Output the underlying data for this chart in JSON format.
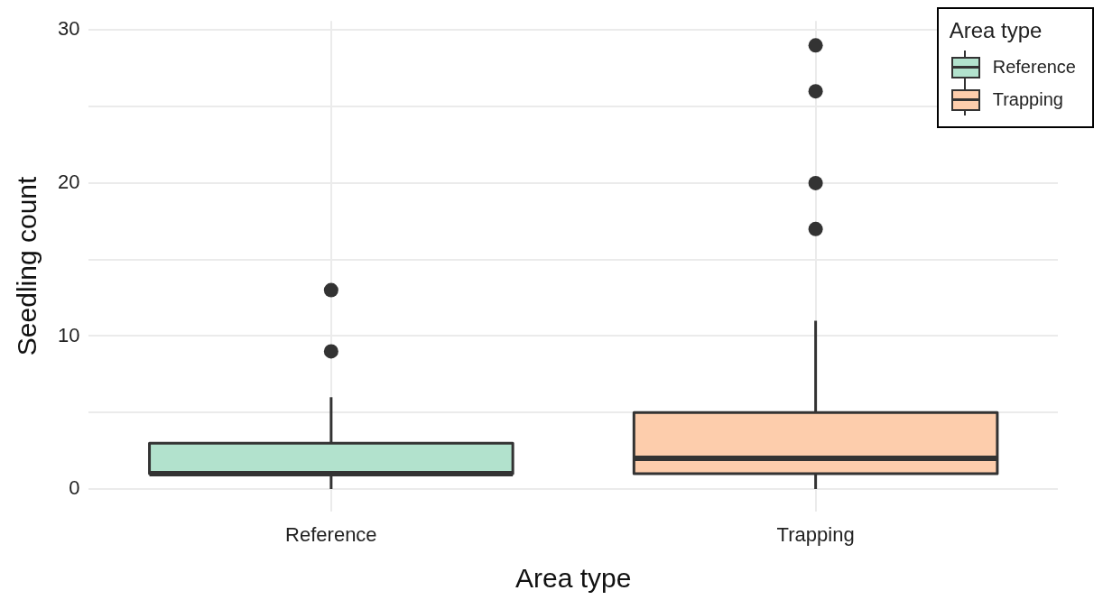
{
  "chart_data": {
    "type": "box",
    "xlabel": "Area type",
    "ylabel": "Seedling count",
    "legend_title": "Area type",
    "legend": "top right",
    "grid": true,
    "categories": [
      "Reference",
      "Trapping"
    ],
    "ylim": [
      -1.45,
      30.6
    ],
    "yticks": [
      0,
      {
        "value": 5,
        "label": null
      },
      10,
      {
        "value": 15,
        "label": null
      },
      20,
      {
        "value": 25,
        "label": null
      },
      30
    ],
    "series": [
      {
        "name": "Reference",
        "color": "#b2e2cd",
        "boxes": [
          {
            "low": 0,
            "q1": 1,
            "median": 1,
            "q3": 3,
            "high": 6,
            "outliers": [
              9,
              13
            ]
          },
          null
        ]
      },
      {
        "name": "Trapping",
        "color": "#fdcdac",
        "boxes": [
          null,
          {
            "low": 0,
            "q1": 1,
            "median": 2,
            "q3": 5,
            "high": 11,
            "outliers": [
              17,
              20,
              26,
              29
            ]
          }
        ]
      }
    ]
  }
}
